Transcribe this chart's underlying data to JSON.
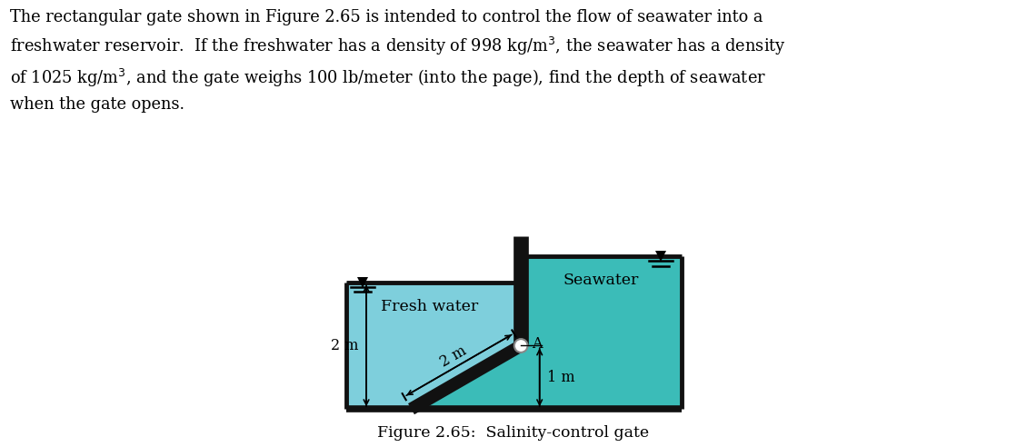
{
  "fig_width": 11.3,
  "fig_height": 4.92,
  "dpi": 100,
  "fresh_color": "#7ecfdc",
  "sea_color": "#3bbcb8",
  "wall_color": "#111111",
  "gate_color": "#111111",
  "label_fresh": "Fresh water",
  "label_sea": "Seawater",
  "label_2m_vert": "2 m",
  "label_2m_diag": "2 m",
  "label_1m": "1 m",
  "label_A": "A",
  "caption": "Figure 2.65:  Salinity-control gate"
}
